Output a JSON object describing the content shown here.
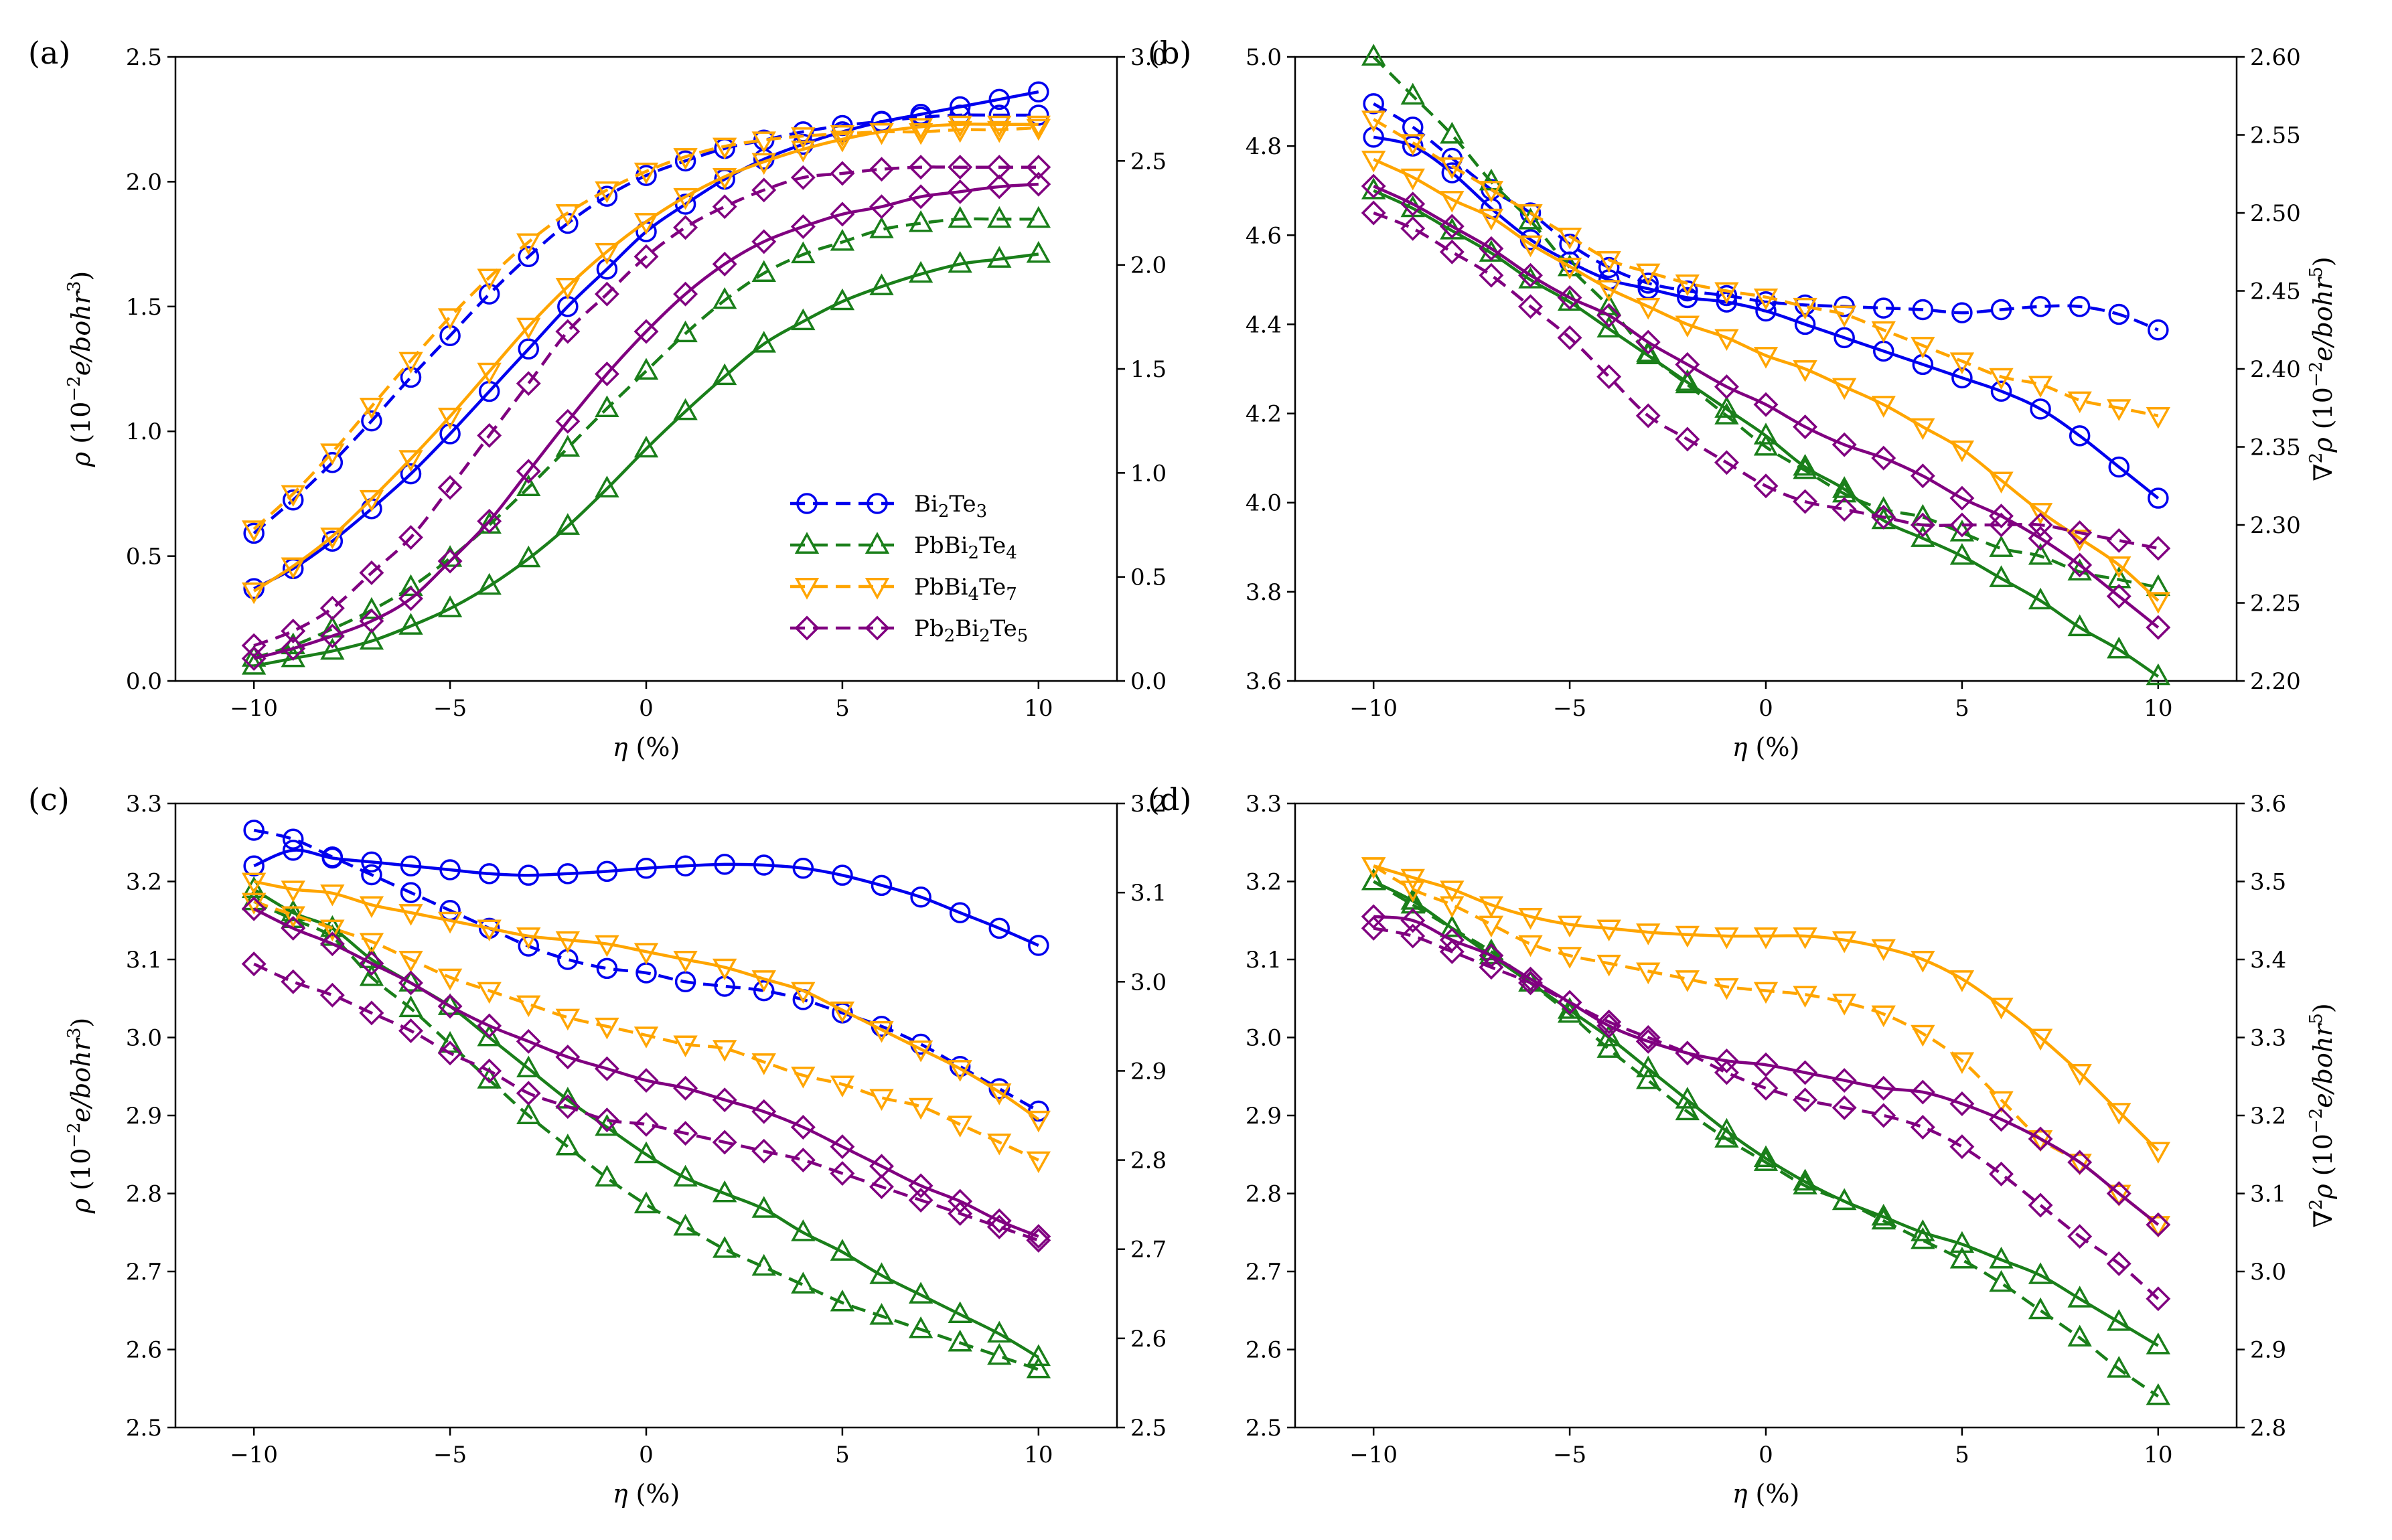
{
  "figure": {
    "legend": [
      {
        "text": "Bi",
        "sub": "2",
        "rest": "Te",
        "sub2": "3",
        "color": "#0000ee",
        "marker": "circle"
      },
      {
        "text": "PbBi",
        "sub": "2",
        "rest": "Te",
        "sub2": "4",
        "color": "#1a7f1a",
        "marker": "triangle-up"
      },
      {
        "text": "PbBi",
        "sub": "4",
        "rest": "Te",
        "sub2": "7",
        "color": "#ffa500",
        "marker": "triangle-down"
      },
      {
        "text": "Pb",
        "sub": "2",
        "rest": "Bi",
        "sub2": "2",
        "rest2": "Te",
        "sub3": "5",
        "color": "#800080",
        "marker": "diamond"
      }
    ],
    "legend_placement": "lower-right of panel (a)",
    "x_axis_label": "η (%)",
    "left_axis_label": "ρ (10⁻²e/bohr³)",
    "right_axis_label": "∇²ρ (10⁻²e/bohr⁵)",
    "solid_line_axis": "left (ρ)",
    "dashed_line_axis": "right (∇²ρ)"
  },
  "chart_data": [
    {
      "panel": "(a)",
      "type": "line",
      "x": [
        -10,
        -9,
        -8,
        -7,
        -6,
        -5,
        -4,
        -3,
        -2,
        -1,
        0,
        1,
        2,
        3,
        4,
        5,
        6,
        7,
        8,
        9,
        10
      ],
      "xlim": [
        -12,
        12
      ],
      "xticks": [
        -10,
        -5,
        0,
        5,
        10
      ],
      "ylim_left": [
        0,
        2.5
      ],
      "yticks_left": [
        "0.0",
        "0.5",
        "1.0",
        "1.5",
        "2.0",
        "2.5"
      ],
      "ylim_right": [
        0,
        3.0
      ],
      "yticks_right": [
        "0.0",
        "0.5",
        "1.0",
        "1.5",
        "2.0",
        "2.5",
        "3.0"
      ],
      "ylabel_left": "ρ (10⁻²e/bohr³)",
      "ylabel_right": "",
      "series": [
        {
          "name": "Bi2Te3",
          "color": "#0000ee",
          "marker": "circle",
          "solid": [
            0.37,
            0.45,
            0.56,
            0.69,
            0.83,
            0.99,
            1.16,
            1.33,
            1.5,
            1.65,
            1.8,
            1.91,
            2.01,
            2.09,
            2.15,
            2.2,
            2.24,
            2.27,
            2.3,
            2.33,
            2.36
          ],
          "dashed": [
            0.71,
            0.87,
            1.05,
            1.25,
            1.46,
            1.66,
            1.86,
            2.04,
            2.2,
            2.33,
            2.43,
            2.5,
            2.56,
            2.6,
            2.64,
            2.67,
            2.69,
            2.71,
            2.72,
            2.72,
            2.72
          ]
        },
        {
          "name": "PbBi2Te4",
          "color": "#1a7f1a",
          "marker": "triangle-up",
          "solid": [
            0.06,
            0.09,
            0.12,
            0.16,
            0.22,
            0.29,
            0.38,
            0.49,
            0.62,
            0.77,
            0.93,
            1.08,
            1.22,
            1.35,
            1.44,
            1.52,
            1.58,
            1.63,
            1.67,
            1.69,
            1.71
          ],
          "dashed": [
            0.11,
            0.17,
            0.25,
            0.34,
            0.45,
            0.59,
            0.75,
            0.93,
            1.12,
            1.31,
            1.49,
            1.67,
            1.83,
            1.96,
            2.05,
            2.11,
            2.17,
            2.2,
            2.22,
            2.22,
            2.22
          ]
        },
        {
          "name": "PbBi4Te7",
          "color": "#ffa500",
          "marker": "triangle-down",
          "solid": [
            0.36,
            0.46,
            0.58,
            0.73,
            0.89,
            1.06,
            1.24,
            1.42,
            1.58,
            1.72,
            1.84,
            1.94,
            2.02,
            2.08,
            2.13,
            2.17,
            2.2,
            2.22,
            2.23,
            2.23,
            2.23
          ],
          "dashed": [
            0.73,
            0.9,
            1.1,
            1.32,
            1.54,
            1.75,
            1.94,
            2.11,
            2.25,
            2.36,
            2.45,
            2.52,
            2.57,
            2.6,
            2.62,
            2.63,
            2.64,
            2.64,
            2.65,
            2.65,
            2.66
          ]
        },
        {
          "name": "Pb2Bi2Te5",
          "color": "#800080",
          "marker": "diamond",
          "solid": [
            0.09,
            0.13,
            0.18,
            0.24,
            0.33,
            0.48,
            0.64,
            0.84,
            1.04,
            1.23,
            1.4,
            1.55,
            1.67,
            1.76,
            1.82,
            1.87,
            1.9,
            1.94,
            1.96,
            1.98,
            1.99
          ],
          "dashed": [
            0.17,
            0.24,
            0.35,
            0.52,
            0.69,
            0.93,
            1.18,
            1.43,
            1.68,
            1.86,
            2.04,
            2.18,
            2.28,
            2.36,
            2.42,
            2.44,
            2.46,
            2.47,
            2.47,
            2.47,
            2.47
          ]
        }
      ]
    },
    {
      "panel": "(b)",
      "type": "line",
      "x": [
        -10,
        -9,
        -8,
        -7,
        -6,
        -5,
        -4,
        -3,
        -2,
        -1,
        0,
        1,
        2,
        3,
        4,
        5,
        6,
        7,
        8,
        9,
        10
      ],
      "xlim": [
        -12,
        12
      ],
      "xticks": [
        -10,
        -5,
        0,
        5,
        10
      ],
      "ylim_left": [
        3.6,
        5.0
      ],
      "yticks_left": [
        "3.6",
        "3.8",
        "4.0",
        "4.2",
        "4.4",
        "4.6",
        "4.8",
        "5.0"
      ],
      "ylim_right": [
        2.2,
        2.6
      ],
      "yticks_right": [
        "2.20",
        "2.25",
        "2.30",
        "2.35",
        "2.40",
        "2.45",
        "2.50",
        "2.55",
        "2.60"
      ],
      "ylabel_left": "",
      "ylabel_right": "∇²ρ (10⁻²e/bohr⁵)",
      "series": [
        {
          "name": "Bi2Te3",
          "color": "#0000ee",
          "marker": "circle",
          "solid": [
            4.82,
            4.8,
            4.74,
            4.66,
            4.59,
            4.54,
            4.5,
            4.48,
            4.46,
            4.45,
            4.43,
            4.4,
            4.37,
            4.34,
            4.31,
            4.28,
            4.25,
            4.21,
            4.15,
            4.08,
            4.01
          ],
          "dashed": [
            2.57,
            2.555,
            2.535,
            2.515,
            2.5,
            2.48,
            2.465,
            2.455,
            2.45,
            2.447,
            2.443,
            2.441,
            2.44,
            2.439,
            2.438,
            2.436,
            2.438,
            2.44,
            2.44,
            2.435,
            2.425
          ]
        },
        {
          "name": "PbBi2Te4",
          "color": "#1a7f1a",
          "marker": "triangle-up",
          "solid": [
            4.7,
            4.66,
            4.61,
            4.56,
            4.5,
            4.45,
            4.39,
            4.33,
            4.27,
            4.21,
            4.15,
            4.08,
            4.03,
            3.96,
            3.92,
            3.88,
            3.83,
            3.78,
            3.72,
            3.67,
            3.61
          ],
          "dashed": [
            2.6,
            2.575,
            2.55,
            2.52,
            2.495,
            2.465,
            2.44,
            2.41,
            2.39,
            2.37,
            2.35,
            2.335,
            2.32,
            2.31,
            2.305,
            2.295,
            2.285,
            2.28,
            2.27,
            2.265,
            2.26
          ]
        },
        {
          "name": "PbBi4Te7",
          "color": "#ffa500",
          "marker": "triangle-down",
          "solid": [
            4.77,
            4.73,
            4.68,
            4.64,
            4.58,
            4.53,
            4.48,
            4.44,
            4.4,
            4.37,
            4.33,
            4.3,
            4.26,
            4.22,
            4.17,
            4.12,
            4.05,
            3.98,
            3.92,
            3.86,
            3.78
          ],
          "dashed": [
            2.56,
            2.545,
            2.53,
            2.515,
            2.5,
            2.485,
            2.47,
            2.462,
            2.455,
            2.45,
            2.446,
            2.44,
            2.435,
            2.425,
            2.415,
            2.405,
            2.395,
            2.39,
            2.38,
            2.375,
            2.37
          ]
        },
        {
          "name": "Pb2Bi2Te5",
          "color": "#800080",
          "marker": "diamond",
          "solid": [
            4.71,
            4.67,
            4.62,
            4.57,
            4.51,
            4.46,
            4.42,
            4.36,
            4.31,
            4.26,
            4.22,
            4.17,
            4.13,
            4.1,
            4.06,
            4.01,
            3.97,
            3.92,
            3.86,
            3.79,
            3.72
          ],
          "dashed": [
            2.5,
            2.49,
            2.475,
            2.46,
            2.44,
            2.42,
            2.395,
            2.37,
            2.355,
            2.34,
            2.325,
            2.315,
            2.31,
            2.305,
            2.3,
            2.3,
            2.3,
            2.3,
            2.295,
            2.29,
            2.285
          ]
        }
      ]
    },
    {
      "panel": "(c)",
      "type": "line",
      "x": [
        -10,
        -9,
        -8,
        -7,
        -6,
        -5,
        -4,
        -3,
        -2,
        -1,
        0,
        1,
        2,
        3,
        4,
        5,
        6,
        7,
        8,
        9,
        10
      ],
      "xlim": [
        -12,
        12
      ],
      "xticks": [
        -10,
        -5,
        0,
        5,
        10
      ],
      "ylim_left": [
        2.5,
        3.3
      ],
      "yticks_left": [
        "2.5",
        "2.6",
        "2.7",
        "2.8",
        "2.9",
        "3.0",
        "3.1",
        "3.2",
        "3.3"
      ],
      "ylim_right": [
        2.5,
        3.2
      ],
      "yticks_right": [
        "2.5",
        "2.6",
        "2.7",
        "2.8",
        "2.9",
        "3.0",
        "3.1",
        "3.2"
      ],
      "ylabel_left": "ρ (10⁻²e/bohr³)",
      "ylabel_right": "",
      "series": [
        {
          "name": "Bi2Te3",
          "color": "#0000ee",
          "marker": "circle",
          "solid": [
            3.22,
            3.24,
            3.23,
            3.225,
            3.22,
            3.215,
            3.21,
            3.208,
            3.21,
            3.213,
            3.217,
            3.22,
            3.222,
            3.221,
            3.217,
            3.208,
            3.195,
            3.18,
            3.16,
            3.14,
            3.118
          ],
          "dashed": [
            3.17,
            3.16,
            3.14,
            3.12,
            3.1,
            3.08,
            3.06,
            3.04,
            3.025,
            3.015,
            3.01,
            3.0,
            2.995,
            2.99,
            2.98,
            2.965,
            2.95,
            2.93,
            2.905,
            2.88,
            2.855
          ]
        },
        {
          "name": "PbBi2Te4",
          "color": "#1a7f1a",
          "marker": "triangle-up",
          "solid": [
            3.19,
            3.16,
            3.14,
            3.1,
            3.07,
            3.04,
            3.0,
            2.96,
            2.92,
            2.885,
            2.85,
            2.82,
            2.8,
            2.78,
            2.75,
            2.725,
            2.695,
            2.67,
            2.645,
            2.62,
            2.59
          ],
          "dashed": [
            3.09,
            3.07,
            3.05,
            3.005,
            2.97,
            2.93,
            2.89,
            2.85,
            2.815,
            2.78,
            2.75,
            2.725,
            2.7,
            2.68,
            2.66,
            2.64,
            2.625,
            2.61,
            2.595,
            2.58,
            2.565
          ]
        },
        {
          "name": "PbBi4Te7",
          "color": "#ffa500",
          "marker": "triangle-down",
          "solid": [
            3.2,
            3.19,
            3.185,
            3.17,
            3.16,
            3.15,
            3.14,
            3.13,
            3.125,
            3.12,
            3.11,
            3.1,
            3.09,
            3.075,
            3.06,
            3.035,
            3.01,
            2.985,
            2.96,
            2.93,
            2.895
          ],
          "dashed": [
            3.09,
            3.075,
            3.06,
            3.045,
            3.025,
            3.005,
            2.99,
            2.975,
            2.96,
            2.95,
            2.94,
            2.93,
            2.925,
            2.91,
            2.895,
            2.885,
            2.87,
            2.86,
            2.84,
            2.82,
            2.8
          ]
        },
        {
          "name": "Pb2Bi2Te5",
          "color": "#800080",
          "marker": "diamond",
          "solid": [
            3.165,
            3.14,
            3.12,
            3.095,
            3.07,
            3.04,
            3.015,
            2.995,
            2.975,
            2.96,
            2.945,
            2.935,
            2.92,
            2.905,
            2.885,
            2.86,
            2.835,
            2.81,
            2.79,
            2.765,
            2.745
          ],
          "dashed": [
            3.02,
            3.0,
            2.985,
            2.965,
            2.945,
            2.92,
            2.9,
            2.875,
            2.86,
            2.845,
            2.84,
            2.83,
            2.82,
            2.81,
            2.8,
            2.785,
            2.77,
            2.755,
            2.74,
            2.725,
            2.71
          ]
        }
      ]
    },
    {
      "panel": "(d)",
      "type": "line",
      "x": [
        -10,
        -9,
        -8,
        -7,
        -6,
        -5,
        -4,
        -3,
        -2,
        -1,
        0,
        1,
        2,
        3,
        4,
        5,
        6,
        7,
        8,
        9,
        10
      ],
      "xlim": [
        -12,
        12
      ],
      "xticks": [
        -10,
        -5,
        0,
        5,
        10
      ],
      "ylim_left": [
        2.5,
        3.3
      ],
      "yticks_left": [
        "2.5",
        "2.6",
        "2.7",
        "2.8",
        "2.9",
        "3.0",
        "3.1",
        "3.2",
        "3.3"
      ],
      "ylim_right": [
        2.8,
        3.6
      ],
      "yticks_right": [
        "2.8",
        "2.9",
        "3.0",
        "3.1",
        "3.2",
        "3.3",
        "3.4",
        "3.5",
        "3.6"
      ],
      "ylabel_left": "",
      "ylabel_right": "∇²ρ (10⁻²e/bohr⁵)",
      "series": [
        {
          "name": "PbBi2Te4",
          "color": "#1a7f1a",
          "marker": "triangle-up",
          "solid": [
            3.2,
            3.175,
            3.14,
            3.105,
            3.07,
            3.035,
            3.0,
            2.96,
            2.92,
            2.88,
            2.845,
            2.815,
            2.79,
            2.77,
            2.75,
            2.735,
            2.715,
            2.695,
            2.665,
            2.635,
            2.605
          ],
          "dashed": [
            3.5,
            3.47,
            3.44,
            3.41,
            3.37,
            3.33,
            3.285,
            3.245,
            3.205,
            3.17,
            3.14,
            3.11,
            3.09,
            3.065,
            3.04,
            3.015,
            2.985,
            2.95,
            2.915,
            2.875,
            2.84
          ]
        },
        {
          "name": "PbBi4Te7",
          "color": "#ffa500",
          "marker": "triangle-down",
          "solid": [
            3.22,
            3.205,
            3.19,
            3.17,
            3.155,
            3.145,
            3.14,
            3.135,
            3.132,
            3.13,
            3.13,
            3.13,
            3.125,
            3.115,
            3.1,
            3.075,
            3.04,
            3.0,
            2.955,
            2.905,
            2.855
          ],
          "dashed": [
            3.52,
            3.49,
            3.47,
            3.445,
            3.42,
            3.405,
            3.395,
            3.385,
            3.375,
            3.365,
            3.36,
            3.355,
            3.345,
            3.33,
            3.305,
            3.27,
            3.22,
            3.17,
            3.14,
            3.1,
            3.06
          ]
        },
        {
          "name": "Pb2Bi2Te5",
          "color": "#800080",
          "marker": "diamond",
          "solid": [
            3.155,
            3.15,
            3.125,
            3.105,
            3.075,
            3.045,
            3.015,
            2.995,
            2.98,
            2.97,
            2.965,
            2.955,
            2.945,
            2.935,
            2.93,
            2.915,
            2.895,
            2.87,
            2.84,
            2.8,
            2.76
          ],
          "dashed": [
            3.44,
            3.43,
            3.41,
            3.39,
            3.37,
            3.345,
            3.32,
            3.3,
            3.28,
            3.255,
            3.235,
            3.22,
            3.21,
            3.2,
            3.185,
            3.16,
            3.125,
            3.085,
            3.045,
            3.01,
            2.965
          ]
        }
      ]
    }
  ]
}
